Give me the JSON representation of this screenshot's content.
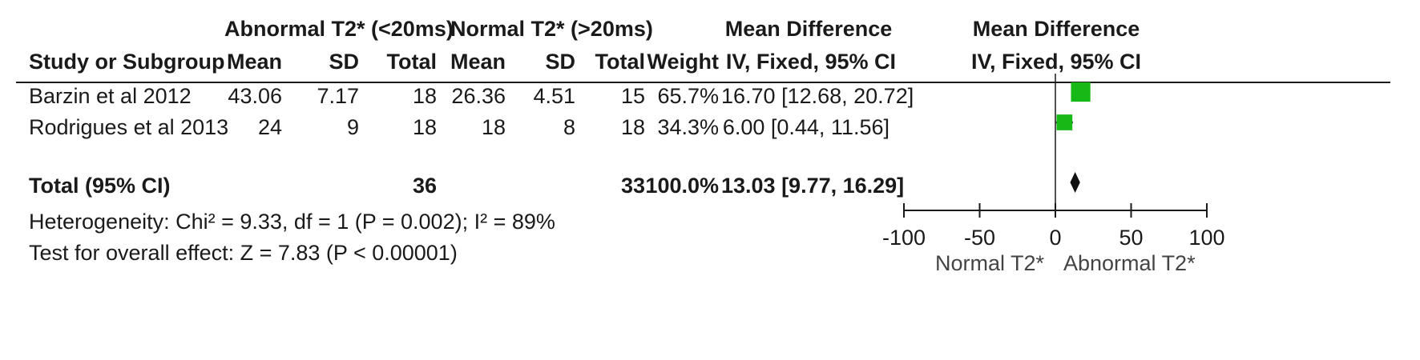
{
  "headers": {
    "group1": "Abnormal T2* (<20ms)",
    "group2": "Normal T2* (>20ms)",
    "md_col": "Mean Difference",
    "md_col_method": "IV, Fixed, 95% CI",
    "md_plot": "Mean Difference",
    "md_plot_method": "IV, Fixed, 95% CI",
    "study": "Study or Subgroup",
    "mean1": "Mean",
    "sd1": "SD",
    "total1": "Total",
    "mean2": "Mean",
    "sd2": "SD",
    "total2": "Total",
    "weight": "Weight"
  },
  "studies": [
    {
      "name": "Barzin et al 2012",
      "mean1": "43.06",
      "sd1": "7.17",
      "total1": "18",
      "mean2": "26.36",
      "sd2": "4.51",
      "total2": "15",
      "weight": "65.7%",
      "ci": "16.70 [12.68, 20.72]"
    },
    {
      "name": "Rodrigues et al 2013",
      "mean1": "24",
      "sd1": "9",
      "total1": "18",
      "mean2": "18",
      "sd2": "8",
      "total2": "18",
      "weight": "34.3%",
      "ci": "6.00 [0.44, 11.56]"
    }
  ],
  "total": {
    "label": "Total (95% CI)",
    "total1": "36",
    "total2": "33",
    "weight": "100.0%",
    "ci": "13.03 [9.77, 16.29]"
  },
  "heterogeneity": "Heterogeneity: Chi² = 9.33, df = 1 (P = 0.002); I² = 89%",
  "overall_effect": "Test for overall effect: Z = 7.83 (P < 0.00001)",
  "axis": {
    "ticks": [
      "-100",
      "-50",
      "0",
      "50",
      "100"
    ],
    "favours_left": "Normal T2*",
    "favours_right": "Abnormal T2*"
  },
  "colors": {
    "study_marker": "#17b917",
    "summary_marker": "#111111",
    "lines": "#1a1a1a"
  },
  "chart_data": {
    "type": "forest",
    "xlim": [
      -100,
      100
    ],
    "xticks": [
      -100,
      -50,
      0,
      50,
      100
    ],
    "studies": [
      {
        "name": "Barzin et al 2012",
        "estimate": 16.7,
        "ci_low": 12.68,
        "ci_high": 20.72,
        "weight": 65.7
      },
      {
        "name": "Rodrigues et al 2013",
        "estimate": 6.0,
        "ci_low": 0.44,
        "ci_high": 11.56,
        "weight": 34.3
      }
    ],
    "summary": {
      "name": "Total (95% CI)",
      "estimate": 13.03,
      "ci_low": 9.77,
      "ci_high": 16.29
    }
  }
}
